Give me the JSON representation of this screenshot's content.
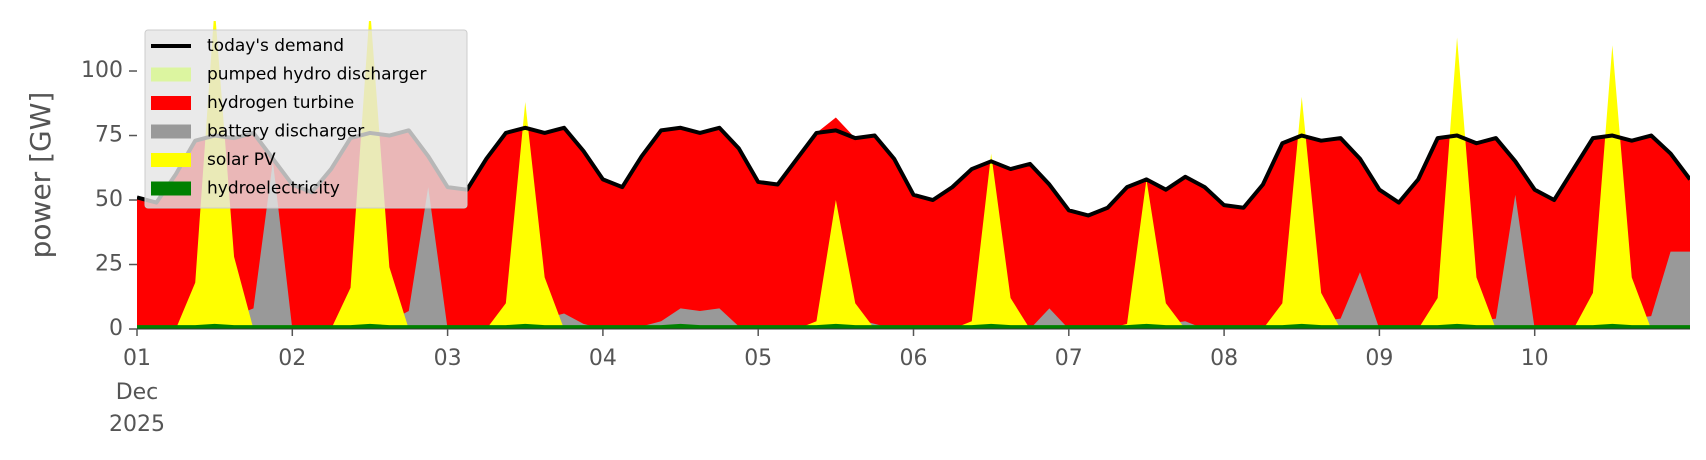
{
  "chart_data": {
    "type": "area",
    "ylabel": "power [GW]",
    "x_month_label": "Dec",
    "x_year_label": "2025",
    "x": [
      1,
      1.125,
      1.25,
      1.375,
      1.5,
      1.625,
      1.75,
      1.875,
      2,
      2.125,
      2.25,
      2.375,
      2.5,
      2.625,
      2.75,
      2.875,
      3,
      3.125,
      3.25,
      3.375,
      3.5,
      3.625,
      3.75,
      3.875,
      4,
      4.125,
      4.25,
      4.375,
      4.5,
      4.625,
      4.75,
      4.875,
      5,
      5.125,
      5.25,
      5.375,
      5.5,
      5.625,
      5.75,
      5.875,
      6,
      6.125,
      6.25,
      6.375,
      6.5,
      6.625,
      6.75,
      6.875,
      7,
      7.125,
      7.25,
      7.375,
      7.5,
      7.625,
      7.75,
      7.875,
      8,
      8.125,
      8.25,
      8.375,
      8.5,
      8.625,
      8.75,
      8.875,
      9,
      9.125,
      9.25,
      9.375,
      9.5,
      9.625,
      9.75,
      9.875,
      10,
      10.125,
      10.25,
      10.375,
      10.5,
      10.625,
      10.75,
      10.875,
      11
    ],
    "xlim": [
      1,
      11
    ],
    "xticks": [
      {
        "value": 1,
        "label": "01"
      },
      {
        "value": 2,
        "label": "02"
      },
      {
        "value": 3,
        "label": "03"
      },
      {
        "value": 4,
        "label": "04"
      },
      {
        "value": 5,
        "label": "05"
      },
      {
        "value": 6,
        "label": "06"
      },
      {
        "value": 7,
        "label": "07"
      },
      {
        "value": 8,
        "label": "08"
      },
      {
        "value": 9,
        "label": "09"
      },
      {
        "value": 10,
        "label": "10"
      }
    ],
    "ylim": [
      0,
      119
    ],
    "yticks": [
      0,
      25,
      50,
      75,
      100
    ],
    "grid": false,
    "legend": "upper left",
    "series": [
      {
        "name": "today's demand",
        "color": "#000000",
        "kind": "line",
        "values": [
          51,
          49,
          60,
          73,
          75,
          74,
          76,
          66,
          56,
          53,
          62,
          74,
          76,
          75,
          77,
          67,
          55,
          54,
          66,
          76,
          78,
          76,
          78,
          69,
          58,
          55,
          67,
          77,
          78,
          76,
          78,
          70,
          57,
          56,
          66,
          76,
          77,
          74,
          75,
          66,
          52,
          50,
          55,
          62,
          65,
          62,
          64,
          56,
          46,
          44,
          47,
          55,
          58,
          54,
          59,
          55,
          48,
          47,
          56,
          72,
          75,
          73,
          74,
          66,
          54,
          49,
          58,
          74,
          75,
          72,
          74,
          65,
          54,
          50,
          62,
          74,
          75,
          73,
          75,
          68,
          58
        ]
      },
      {
        "name": "pumped hydro discharger",
        "color": "#dcf5a0",
        "kind": "area",
        "values": [
          0,
          0,
          0,
          0,
          0,
          0,
          0,
          0,
          0,
          0,
          0,
          0,
          0,
          0,
          0,
          0,
          0,
          0,
          0,
          0,
          0,
          0,
          0,
          0,
          0,
          0,
          0,
          0,
          0,
          0,
          0,
          0,
          0,
          0,
          0,
          0,
          0,
          0,
          0,
          0,
          0,
          0,
          0,
          0,
          0,
          0,
          0,
          0,
          0,
          0,
          0,
          0,
          0,
          0,
          0,
          0,
          0,
          0,
          0,
          0,
          0,
          0,
          0,
          0,
          0,
          0,
          0,
          0,
          0,
          0,
          0,
          0,
          0,
          0,
          0,
          0,
          0,
          0,
          0,
          0,
          0
        ]
      },
      {
        "name": "hydrogen turbine",
        "color": "#ff0000",
        "kind": "area",
        "values": [
          51,
          49,
          60,
          73,
          75,
          74,
          76,
          66,
          56,
          53,
          62,
          74,
          76,
          75,
          77,
          67,
          55,
          54,
          66,
          76,
          78,
          76,
          78,
          69,
          58,
          55,
          67,
          77,
          78,
          76,
          78,
          70,
          57,
          56,
          66,
          76,
          82,
          74,
          75,
          66,
          52,
          50,
          55,
          62,
          65,
          62,
          64,
          56,
          46,
          44,
          47,
          55,
          58,
          54,
          59,
          55,
          48,
          47,
          56,
          72,
          75,
          73,
          74,
          66,
          54,
          49,
          58,
          74,
          75,
          72,
          74,
          65,
          54,
          50,
          62,
          74,
          75,
          73,
          75,
          68,
          58
        ]
      },
      {
        "name": "battery discharger",
        "color": "#999999",
        "kind": "area",
        "values": [
          0,
          0,
          0,
          0,
          0,
          5,
          8,
          65,
          0,
          0,
          0,
          0,
          0,
          3,
          7,
          55,
          0,
          0,
          0,
          1,
          2,
          4,
          6,
          2,
          0,
          0,
          1,
          3,
          8,
          7,
          8,
          1,
          0,
          0,
          0,
          1,
          2,
          4,
          2,
          0,
          0,
          0,
          0,
          0,
          1,
          1,
          0,
          8,
          0,
          0,
          0,
          0,
          1,
          2,
          3,
          0,
          0,
          0,
          0,
          1,
          2,
          3,
          4,
          22,
          0,
          0,
          0,
          1,
          2,
          3,
          4,
          52,
          0,
          0,
          0,
          1,
          2,
          4,
          5,
          30,
          30
        ]
      },
      {
        "name": "solar PV",
        "color": "#ffff00",
        "kind": "area",
        "values": [
          0,
          0,
          0,
          18,
          125,
          28,
          0,
          0,
          0,
          0,
          0,
          16,
          125,
          24,
          0,
          0,
          0,
          0,
          0,
          10,
          88,
          20,
          0,
          0,
          0,
          0,
          0,
          0,
          0,
          0,
          0,
          0,
          0,
          0,
          0,
          3,
          50,
          10,
          0,
          0,
          0,
          0,
          0,
          3,
          68,
          12,
          0,
          0,
          0,
          0,
          0,
          2,
          58,
          10,
          0,
          0,
          0,
          0,
          0,
          10,
          90,
          14,
          0,
          0,
          0,
          0,
          0,
          12,
          113,
          20,
          0,
          0,
          0,
          0,
          0,
          14,
          110,
          20,
          0,
          0,
          0
        ]
      },
      {
        "name": "hydroelectricity",
        "color": "#008000",
        "kind": "area",
        "values": [
          1.5,
          1.5,
          1.5,
          1.5,
          2,
          1.5,
          1.5,
          1.5,
          1.5,
          1.5,
          1.5,
          1.5,
          2,
          1.5,
          1.5,
          1.5,
          1.5,
          1.5,
          1.5,
          1.5,
          2,
          1.5,
          1.5,
          1.5,
          1.5,
          1.5,
          1.5,
          1.5,
          2,
          1.5,
          1.5,
          1.5,
          1.5,
          1.5,
          1.5,
          1.5,
          2,
          1.5,
          1.5,
          1.5,
          1.5,
          1.5,
          1.5,
          1.5,
          2,
          1.5,
          1.5,
          1.5,
          1.5,
          1.5,
          1.5,
          1.5,
          2,
          1.5,
          1.5,
          1.5,
          1.5,
          1.5,
          1.5,
          1.5,
          2,
          1.5,
          1.5,
          1.5,
          1.5,
          1.5,
          1.5,
          1.5,
          2,
          1.5,
          1.5,
          1.5,
          1.5,
          1.5,
          1.5,
          1.5,
          2,
          1.5,
          1.5,
          1.5,
          1.5
        ]
      }
    ]
  }
}
